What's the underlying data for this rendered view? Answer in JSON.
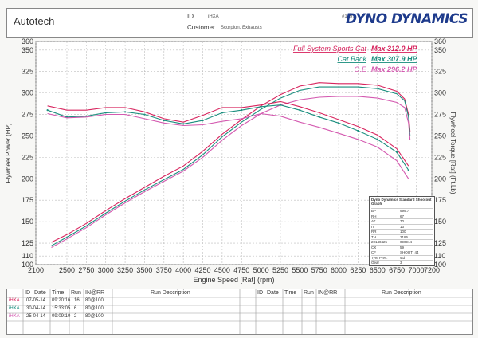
{
  "header": {
    "company": "Autotech",
    "id_label": "ID",
    "id_value": "iHXA",
    "customer_label": "Customer",
    "customer_value": "Scorpion, Exhausts",
    "sheet_number": "#1497",
    "brand": "DYNO DYNAMICS"
  },
  "legend": [
    {
      "name": "Full System Sports Cat",
      "max_label": "Max 312.0 HP",
      "color": "#d8245e"
    },
    {
      "name": "Cat Back",
      "max_label": "Max 307.9 HP",
      "color": "#1a8e7e"
    },
    {
      "name": "O.E",
      "max_label": "Max 296.2 HP",
      "color": "#d45ab0"
    }
  ],
  "info_box": {
    "title": "Dyno Dynamics Standard Shootout Graph",
    "rows": [
      [
        "BP",
        "999.7"
      ],
      [
        "RH",
        "67"
      ],
      [
        "AT",
        "70"
      ],
      [
        "IT",
        "13"
      ],
      [
        "RR",
        "100"
      ],
      [
        "TH",
        "3186"
      ],
      [
        "20140425",
        "090914"
      ],
      [
        "CX",
        "59"
      ],
      [
        "CF",
        "SHOOT_44"
      ],
      [
        "Tyre Pres.",
        "std"
      ],
      [
        "Gear",
        "3"
      ]
    ]
  },
  "table": {
    "headers": [
      "ID",
      "Date",
      "Time",
      "Run",
      "IN@RR",
      "Run Description"
    ],
    "rows": [
      {
        "id": "iHXA",
        "date": "07-05-14",
        "time": "09:20:16",
        "run": "16",
        "inrr": "80@100",
        "desc": ""
      },
      {
        "id": "iHXA",
        "date": "30-04-14",
        "time": "15:33:05",
        "run": "6",
        "inrr": "80@100",
        "desc": ""
      },
      {
        "id": "iHXA",
        "date": "25-04-14",
        "time": "09:09:10",
        "run": "2",
        "inrr": "80@100",
        "desc": ""
      }
    ],
    "row_colors": [
      "#d8245e",
      "#1a8e7e",
      "#d45ab0"
    ]
  },
  "chart_data": {
    "type": "line",
    "xlabel": "Engine Speed [Rat] (rpm)",
    "ylabel": "Flywheel Power (HP)",
    "y2label": "Flywheel Torque [Rat] (Ft.Lb)",
    "xlim": [
      2100,
      7200
    ],
    "ylim": [
      100,
      360
    ],
    "y2lim": [
      100,
      360
    ],
    "x_ticks": [
      2100,
      2500,
      2750,
      3000,
      3250,
      3500,
      3750,
      4000,
      4250,
      4500,
      4750,
      5000,
      5250,
      5500,
      5750,
      6000,
      6250,
      6500,
      6750,
      7000,
      7200
    ],
    "y_ticks": [
      100,
      110,
      125,
      150,
      175,
      200,
      225,
      250,
      275,
      300,
      325,
      350,
      360
    ],
    "y2_ticks": [
      100,
      110,
      125,
      150,
      175,
      200,
      225,
      250,
      275,
      300,
      325,
      350,
      360
    ],
    "grid": true,
    "series": [
      {
        "name": "Full System Sports Cat",
        "kind": "power",
        "x": [
          2300,
          2500,
          2750,
          3000,
          3250,
          3500,
          3750,
          4000,
          4250,
          4500,
          4750,
          5000,
          5250,
          5500,
          5750,
          6000,
          6250,
          6500,
          6750,
          6850,
          6900,
          6920
        ],
        "y": [
          126,
          135,
          148,
          163,
          177,
          190,
          203,
          215,
          232,
          252,
          269,
          285,
          298,
          308,
          312,
          311,
          311,
          309,
          302,
          293,
          275,
          255
        ]
      },
      {
        "name": "Cat Back",
        "kind": "power",
        "x": [
          2300,
          2500,
          2750,
          3000,
          3250,
          3500,
          3750,
          4000,
          4250,
          4500,
          4750,
          5000,
          5250,
          5500,
          5750,
          6000,
          6250,
          6500,
          6750,
          6850,
          6900,
          6920
        ],
        "y": [
          122,
          132,
          145,
          160,
          174,
          187,
          199,
          211,
          228,
          249,
          266,
          281,
          294,
          303,
          307,
          307,
          307,
          305,
          299,
          291,
          272,
          250
        ]
      },
      {
        "name": "O.E",
        "kind": "power",
        "x": [
          2300,
          2500,
          2750,
          3000,
          3250,
          3500,
          3750,
          4000,
          4250,
          4500,
          4750,
          5000,
          5250,
          5500,
          5750,
          6000,
          6250,
          6500,
          6750,
          6850,
          6900,
          6920
        ],
        "y": [
          120,
          130,
          143,
          158,
          172,
          185,
          197,
          209,
          225,
          245,
          262,
          276,
          286,
          292,
          295,
          296,
          296,
          294,
          289,
          283,
          265,
          245
        ]
      },
      {
        "name": "Full System Sports Cat",
        "kind": "torque",
        "x": [
          2250,
          2500,
          2750,
          3000,
          3250,
          3500,
          3750,
          4000,
          4250,
          4500,
          4750,
          5000,
          5250,
          5500,
          5750,
          6000,
          6250,
          6500,
          6750,
          6900
        ],
        "y": [
          285,
          280,
          280,
          283,
          283,
          278,
          270,
          266,
          274,
          283,
          283,
          286,
          290,
          284,
          277,
          269,
          261,
          251,
          235,
          215
        ]
      },
      {
        "name": "Cat Back",
        "kind": "torque",
        "x": [
          2250,
          2500,
          2750,
          3000,
          3250,
          3500,
          3750,
          4000,
          4250,
          4500,
          4750,
          5000,
          5250,
          5500,
          5750,
          6000,
          6250,
          6500,
          6750,
          6900
        ],
        "y": [
          280,
          272,
          273,
          277,
          278,
          275,
          268,
          264,
          268,
          277,
          280,
          284,
          286,
          280,
          272,
          265,
          256,
          246,
          231,
          210
        ]
      },
      {
        "name": "O.E",
        "kind": "torque",
        "x": [
          2250,
          2500,
          2750,
          3000,
          3250,
          3500,
          3750,
          4000,
          4250,
          4500,
          4750,
          5000,
          5250,
          5500,
          5750,
          6000,
          6250,
          6500,
          6750,
          6900
        ],
        "y": [
          276,
          271,
          272,
          275,
          275,
          270,
          265,
          262,
          263,
          267,
          270,
          276,
          273,
          266,
          260,
          253,
          246,
          237,
          221,
          200
        ]
      }
    ]
  }
}
